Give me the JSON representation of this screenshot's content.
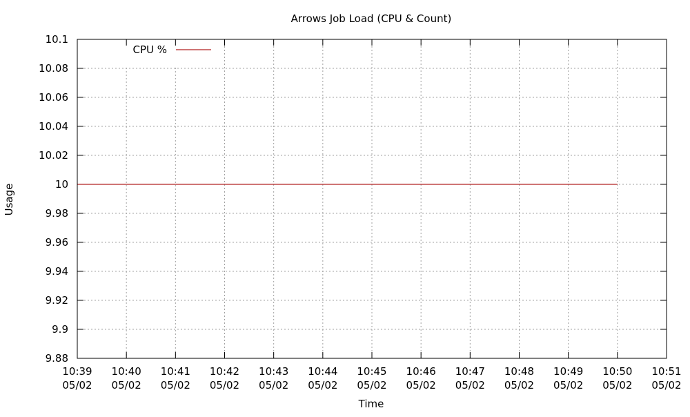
{
  "chart_data": {
    "type": "line",
    "title": "Arrows Job Load (CPU & Count)",
    "xlabel": "Time",
    "ylabel": "Usage",
    "x_ticks": [
      {
        "time": "10:39",
        "date": "05/02"
      },
      {
        "time": "10:40",
        "date": "05/02"
      },
      {
        "time": "10:41",
        "date": "05/02"
      },
      {
        "time": "10:42",
        "date": "05/02"
      },
      {
        "time": "10:43",
        "date": "05/02"
      },
      {
        "time": "10:44",
        "date": "05/02"
      },
      {
        "time": "10:45",
        "date": "05/02"
      },
      {
        "time": "10:46",
        "date": "05/02"
      },
      {
        "time": "10:47",
        "date": "05/02"
      },
      {
        "time": "10:48",
        "date": "05/02"
      },
      {
        "time": "10:49",
        "date": "05/02"
      },
      {
        "time": "10:50",
        "date": "05/02"
      },
      {
        "time": "10:51",
        "date": "05/02"
      }
    ],
    "xlim": [
      "10:39",
      "10:51"
    ],
    "y_ticks": [
      "10.1",
      "10.08",
      "10.06",
      "10.04",
      "10.02",
      "10",
      "9.98",
      "9.96",
      "9.94",
      "9.92",
      "9.9",
      "9.88"
    ],
    "ylim": [
      9.88,
      10.1
    ],
    "grid": true,
    "legend_position": "top-left",
    "series": [
      {
        "name": "CPU %",
        "color": "#b22222",
        "points": [
          {
            "x": "10:39",
            "y": 10
          },
          {
            "x": "10:50",
            "y": 10
          }
        ]
      }
    ]
  }
}
